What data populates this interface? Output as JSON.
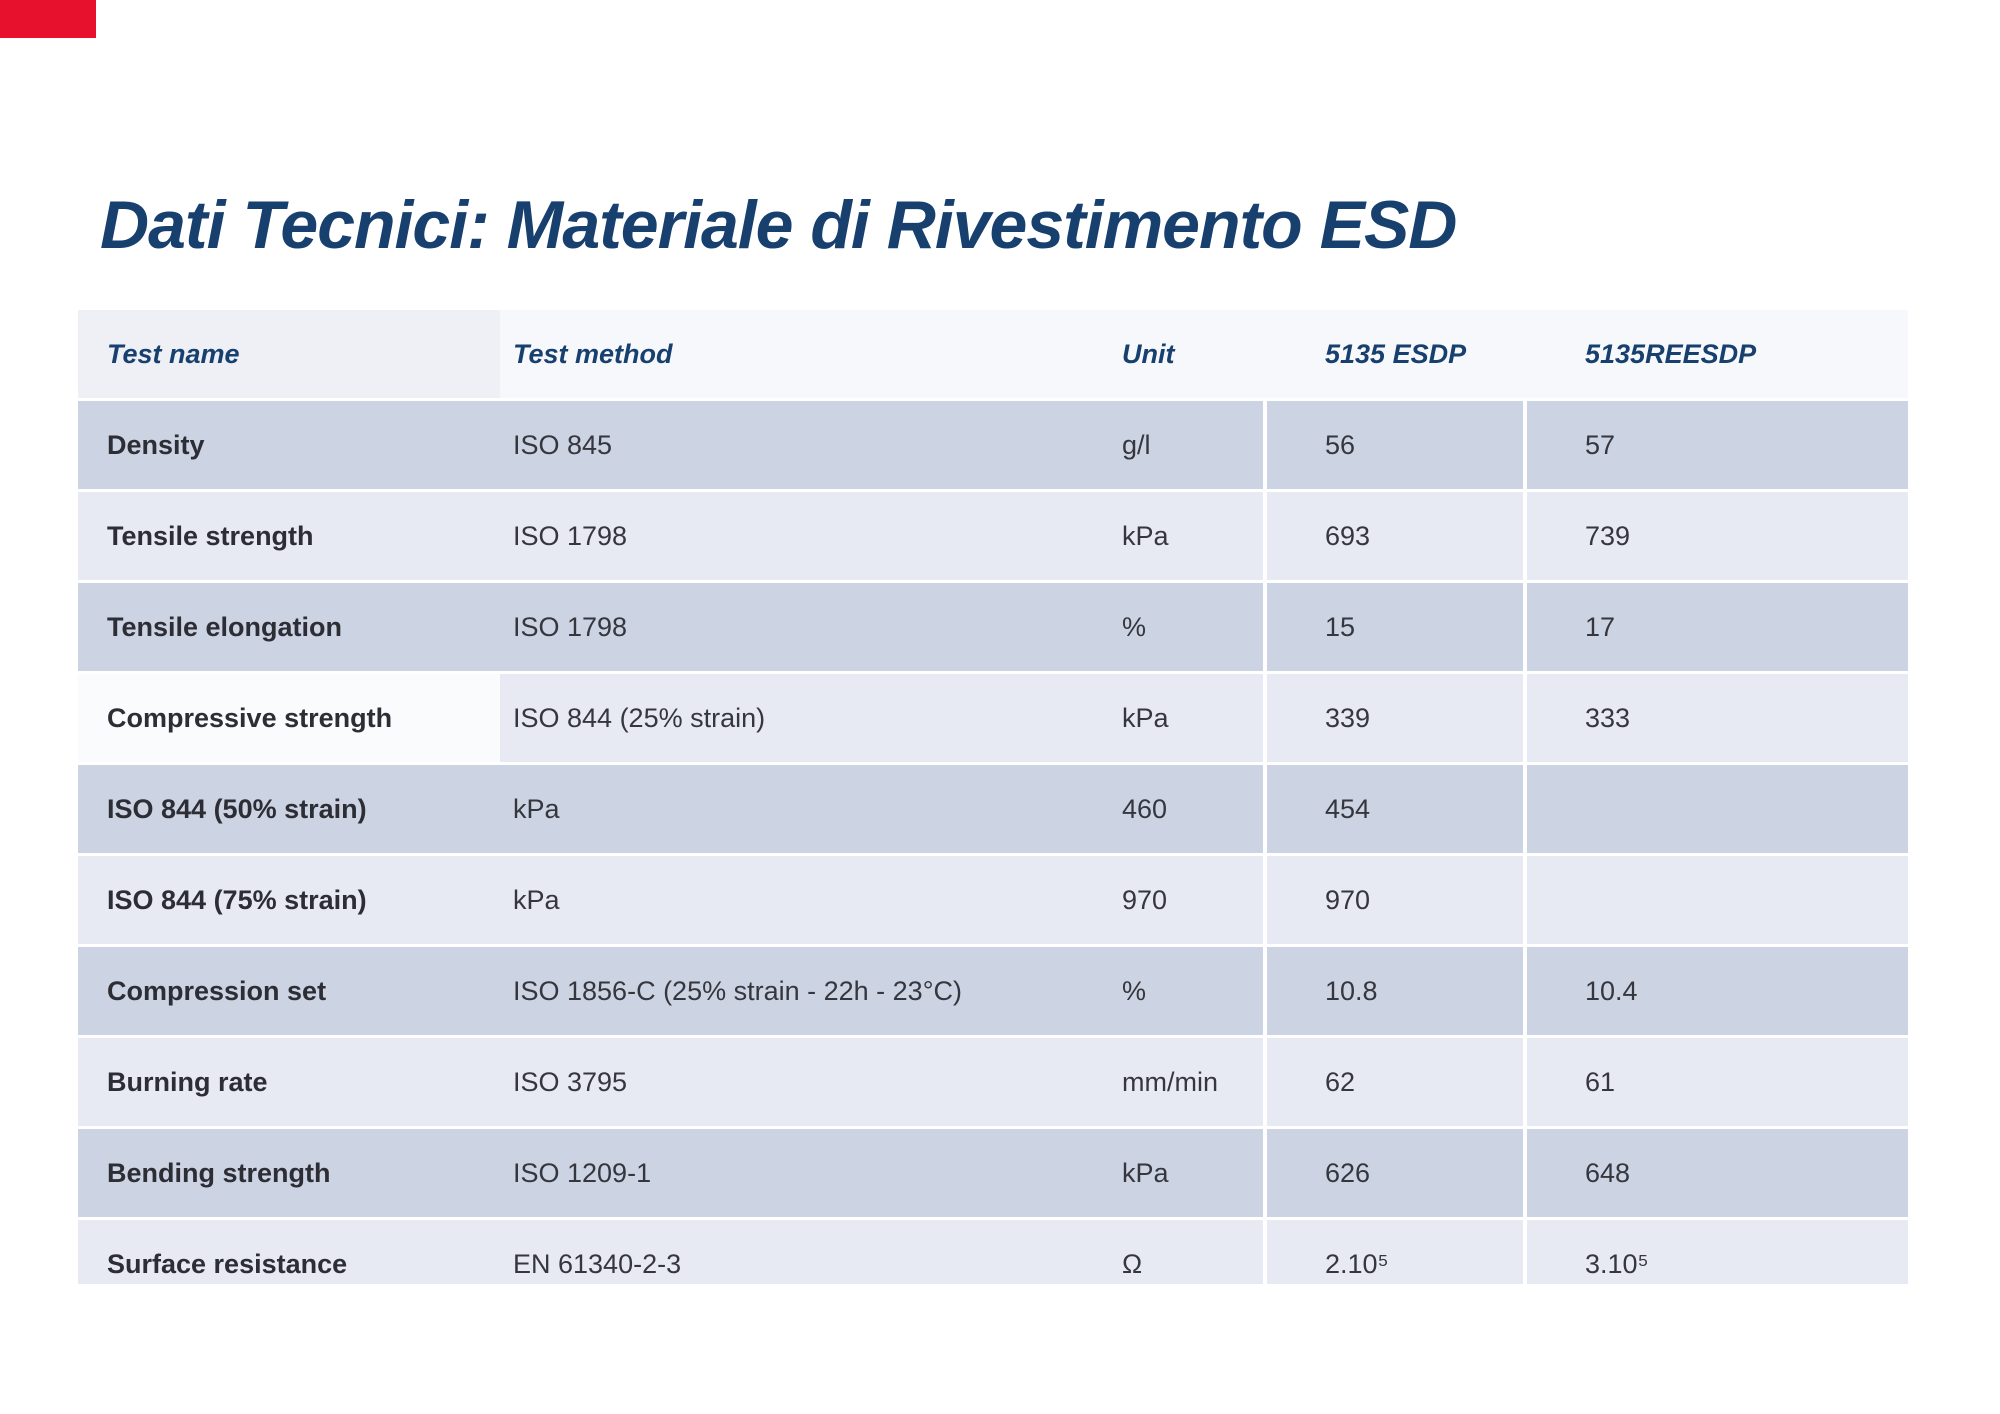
{
  "slide": {
    "title": "Dati Tecnici: Materiale di Rivestimento ESD"
  },
  "colors": {
    "accent_red": "#e8112d",
    "title_navy": "#17406e",
    "row_dark": "#ccd3e3",
    "row_light": "#e7eaf2",
    "header_bg": "#f6f8fb",
    "header_first_cell_bg": "#eef0f6",
    "highlight_cell_bg": "#fafbfd"
  },
  "table": {
    "columns": [
      "Test name",
      "Test method",
      "Unit",
      "5135 ESDP",
      "5135REESDP"
    ],
    "rows": [
      {
        "cells": [
          "Density",
          "ISO 845",
          "g/l",
          "56",
          "57"
        ],
        "shade": "dark",
        "highlight_first_cell": false
      },
      {
        "cells": [
          "Tensile strength",
          "ISO 1798",
          "kPa",
          "693",
          "739"
        ],
        "shade": "light",
        "highlight_first_cell": false
      },
      {
        "cells": [
          "Tensile elongation",
          "ISO 1798",
          "%",
          "15",
          "17"
        ],
        "shade": "dark",
        "highlight_first_cell": false
      },
      {
        "cells": [
          "Compressive strength",
          "ISO 844 (25% strain)",
          "kPa",
          "339",
          "333"
        ],
        "shade": "light",
        "highlight_first_cell": true
      },
      {
        "cells": [
          "ISO 844 (50% strain)",
          "kPa",
          "460",
          "454",
          ""
        ],
        "shade": "dark",
        "highlight_first_cell": false
      },
      {
        "cells": [
          "ISO 844 (75% strain)",
          "kPa",
          "970",
          "970",
          ""
        ],
        "shade": "light",
        "highlight_first_cell": false
      },
      {
        "cells": [
          "Compression set",
          "ISO 1856-C (25% strain - 22h - 23°C)",
          "%",
          "10.8",
          "10.4"
        ],
        "shade": "dark",
        "highlight_first_cell": false
      },
      {
        "cells": [
          "Burning rate",
          "ISO 3795",
          "mm/min",
          "62",
          "61"
        ],
        "shade": "light",
        "highlight_first_cell": false
      },
      {
        "cells": [
          "Bending strength",
          "ISO 1209-1",
          "kPa",
          "626",
          "648"
        ],
        "shade": "dark",
        "highlight_first_cell": false
      },
      {
        "cells": [
          "Surface resistance",
          "EN 61340-2-3",
          "Ω",
          "2.10⁵",
          "3.10⁵"
        ],
        "shade": "light",
        "highlight_first_cell": false
      }
    ]
  }
}
